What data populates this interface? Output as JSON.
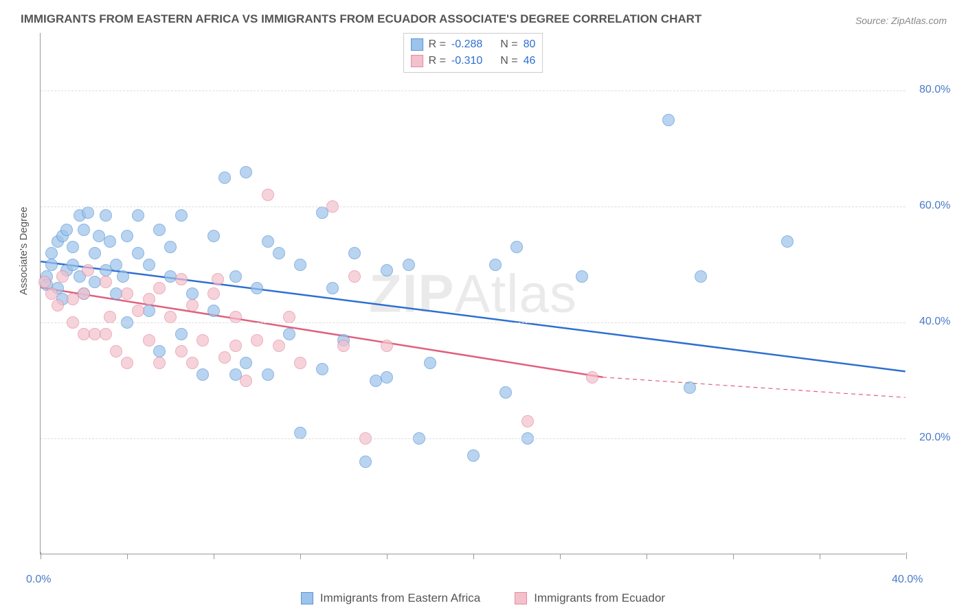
{
  "title": "IMMIGRANTS FROM EASTERN AFRICA VS IMMIGRANTS FROM ECUADOR ASSOCIATE'S DEGREE CORRELATION CHART",
  "source": "Source: ZipAtlas.com",
  "watermark_prefix": "ZIP",
  "watermark_suffix": "Atlas",
  "y_axis_label": "Associate's Degree",
  "chart": {
    "type": "scatter",
    "xlim": [
      0,
      40
    ],
    "ylim": [
      0,
      90
    ],
    "x_ticks": [
      0,
      40
    ],
    "x_tick_labels": [
      "0.0%",
      "40.0%"
    ],
    "x_minor_ticks": [
      4,
      8,
      12,
      16,
      20,
      24,
      28,
      32,
      36
    ],
    "y_gridlines": [
      20,
      40,
      60,
      80
    ],
    "y_tick_labels": [
      "20.0%",
      "40.0%",
      "60.0%",
      "80.0%"
    ],
    "background_color": "#ffffff",
    "grid_color": "#dddddd",
    "axis_color": "#999999",
    "text_color": "#555555",
    "tick_label_color": "#4a7ac7",
    "series": [
      {
        "name": "Immigrants from Eastern Africa",
        "fill_color": "#9cc3eb",
        "stroke_color": "#5a95d6",
        "line_color": "#2e6fd1",
        "regression": {
          "x1": 0,
          "y1": 50.5,
          "x2": 40,
          "y2": 31.5,
          "dash_after_x": 40
        },
        "R": "-0.288",
        "N": "80",
        "points": [
          [
            0.3,
            48
          ],
          [
            0.3,
            46.5
          ],
          [
            0.5,
            50
          ],
          [
            0.5,
            52
          ],
          [
            0.8,
            54
          ],
          [
            0.8,
            46
          ],
          [
            1.0,
            55
          ],
          [
            1.0,
            44
          ],
          [
            1.2,
            56
          ],
          [
            1.2,
            49
          ],
          [
            1.5,
            50
          ],
          [
            1.5,
            53
          ],
          [
            1.8,
            48
          ],
          [
            1.8,
            58.5
          ],
          [
            2.0,
            45
          ],
          [
            2.0,
            56
          ],
          [
            2.2,
            59
          ],
          [
            2.5,
            47
          ],
          [
            2.5,
            52
          ],
          [
            2.7,
            55
          ],
          [
            3.0,
            58.5
          ],
          [
            3.0,
            49
          ],
          [
            3.2,
            54
          ],
          [
            3.5,
            45
          ],
          [
            3.5,
            50
          ],
          [
            3.8,
            48
          ],
          [
            4.0,
            55
          ],
          [
            4.0,
            40
          ],
          [
            4.5,
            52
          ],
          [
            4.5,
            58.5
          ],
          [
            5.0,
            42
          ],
          [
            5.0,
            50
          ],
          [
            5.5,
            56
          ],
          [
            5.5,
            35
          ],
          [
            6.0,
            48
          ],
          [
            6.0,
            53
          ],
          [
            6.5,
            38
          ],
          [
            6.5,
            58.5
          ],
          [
            7.0,
            45
          ],
          [
            7.5,
            31
          ],
          [
            8.0,
            55
          ],
          [
            8.0,
            42
          ],
          [
            8.5,
            65
          ],
          [
            9.0,
            48
          ],
          [
            9.0,
            31
          ],
          [
            9.5,
            66
          ],
          [
            9.5,
            33
          ],
          [
            10.0,
            46
          ],
          [
            10.5,
            54
          ],
          [
            10.5,
            31
          ],
          [
            11.0,
            52
          ],
          [
            11.5,
            38
          ],
          [
            12.0,
            50
          ],
          [
            12.0,
            21
          ],
          [
            13.0,
            59
          ],
          [
            13.0,
            32
          ],
          [
            13.5,
            46
          ],
          [
            14.0,
            37
          ],
          [
            14.5,
            52
          ],
          [
            15.0,
            16
          ],
          [
            15.5,
            30
          ],
          [
            16.0,
            49
          ],
          [
            16.0,
            30.5
          ],
          [
            17.0,
            50
          ],
          [
            17.5,
            20
          ],
          [
            18.0,
            33
          ],
          [
            20.0,
            17
          ],
          [
            21.0,
            50
          ],
          [
            21.5,
            28
          ],
          [
            22.0,
            53
          ],
          [
            22.5,
            20
          ],
          [
            25.0,
            48
          ],
          [
            29.0,
            75
          ],
          [
            30.0,
            28.8
          ],
          [
            34.5,
            54
          ],
          [
            30.5,
            48
          ]
        ]
      },
      {
        "name": "Immigrants from Ecuador",
        "fill_color": "#f3c1cc",
        "stroke_color": "#e68aa0",
        "line_color": "#e15f7d",
        "regression": {
          "x1": 0,
          "y1": 46,
          "x2": 26,
          "y2": 30.5,
          "dash_after_x": 26,
          "dash_x2": 40,
          "dash_y2": 27
        },
        "R": "-0.310",
        "N": "46",
        "points": [
          [
            0.2,
            47
          ],
          [
            0.5,
            45
          ],
          [
            0.8,
            43
          ],
          [
            1.0,
            48
          ],
          [
            1.5,
            44
          ],
          [
            1.5,
            40
          ],
          [
            2.0,
            45
          ],
          [
            2.0,
            38
          ],
          [
            2.2,
            49
          ],
          [
            2.5,
            38
          ],
          [
            3.0,
            47
          ],
          [
            3.0,
            38
          ],
          [
            3.2,
            41
          ],
          [
            3.5,
            35
          ],
          [
            4.0,
            45
          ],
          [
            4.0,
            33
          ],
          [
            4.5,
            42
          ],
          [
            5.0,
            44
          ],
          [
            5.0,
            37
          ],
          [
            5.5,
            46
          ],
          [
            5.5,
            33
          ],
          [
            6.0,
            41
          ],
          [
            6.5,
            47.5
          ],
          [
            6.5,
            35
          ],
          [
            7.0,
            43
          ],
          [
            7.0,
            33
          ],
          [
            7.5,
            37
          ],
          [
            8.0,
            45
          ],
          [
            8.2,
            47.5
          ],
          [
            8.5,
            34
          ],
          [
            9.0,
            41
          ],
          [
            9.0,
            36
          ],
          [
            9.5,
            30
          ],
          [
            10.0,
            37
          ],
          [
            10.5,
            62
          ],
          [
            11.0,
            36
          ],
          [
            11.5,
            41
          ],
          [
            12.0,
            33
          ],
          [
            13.5,
            60
          ],
          [
            14.0,
            36
          ],
          [
            14.5,
            48
          ],
          [
            15.0,
            20
          ],
          [
            16.0,
            36
          ],
          [
            22.5,
            23
          ],
          [
            25.5,
            30.5
          ]
        ]
      }
    ]
  },
  "legend_top": {
    "R_label": "R =",
    "N_label": "N ="
  },
  "legend_bottom": {
    "items": [
      "Immigrants from Eastern Africa",
      "Immigrants from Ecuador"
    ]
  }
}
